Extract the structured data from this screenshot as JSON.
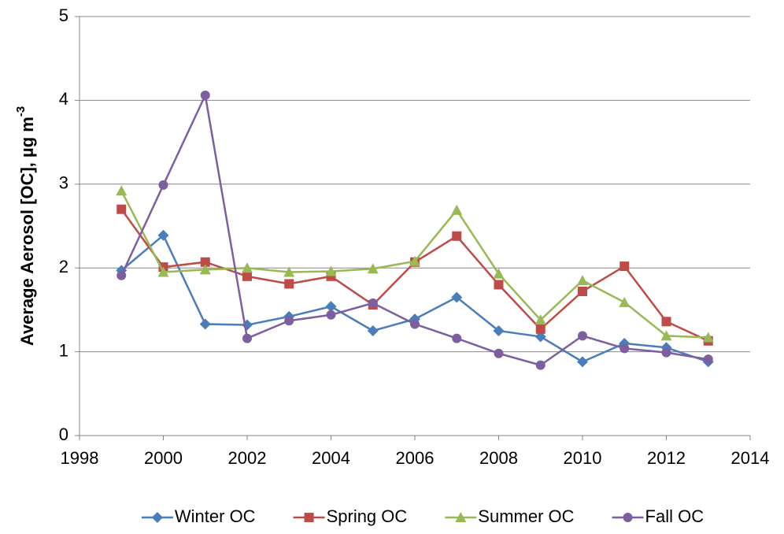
{
  "chart_data": {
    "type": "line",
    "ylabel": "Average Aerosol [OC], µg m",
    "ylabel_superscript": "-3",
    "x": [
      1999,
      2000,
      2001,
      2002,
      2003,
      2004,
      2005,
      2006,
      2007,
      2008,
      2009,
      2010,
      2011,
      2012,
      2013
    ],
    "series": [
      {
        "name": "Winter OC",
        "color": "#4a7ebb",
        "marker": "diamond",
        "values": [
          1.97,
          2.39,
          1.33,
          1.32,
          1.42,
          1.54,
          1.25,
          1.39,
          1.65,
          1.25,
          1.18,
          0.88,
          1.1,
          1.05,
          0.88
        ]
      },
      {
        "name": "Spring OC",
        "color": "#be4b48",
        "marker": "square",
        "values": [
          2.7,
          2.01,
          2.07,
          1.9,
          1.81,
          1.9,
          1.56,
          2.07,
          2.38,
          1.8,
          1.27,
          1.72,
          2.02,
          1.36,
          1.13
        ]
      },
      {
        "name": "Summer OC",
        "color": "#98b954",
        "marker": "triangle",
        "values": [
          2.92,
          1.95,
          1.98,
          2.0,
          1.95,
          1.96,
          1.99,
          2.08,
          2.69,
          1.93,
          1.38,
          1.85,
          1.59,
          1.19,
          1.17
        ]
      },
      {
        "name": "Fall OC",
        "color": "#7d5fa0",
        "marker": "circle",
        "values": [
          1.91,
          2.99,
          4.06,
          1.16,
          1.37,
          1.44,
          1.58,
          1.33,
          1.16,
          0.98,
          0.84,
          1.19,
          1.04,
          0.99,
          0.91
        ]
      }
    ],
    "xlim": [
      1998,
      2014
    ],
    "xticks": [
      1998,
      2000,
      2002,
      2004,
      2006,
      2008,
      2010,
      2012,
      2014
    ],
    "ylim": [
      0,
      5
    ],
    "yticks": [
      0,
      1,
      2,
      3,
      4,
      5
    ],
    "grid": true,
    "legend": "bottom"
  }
}
